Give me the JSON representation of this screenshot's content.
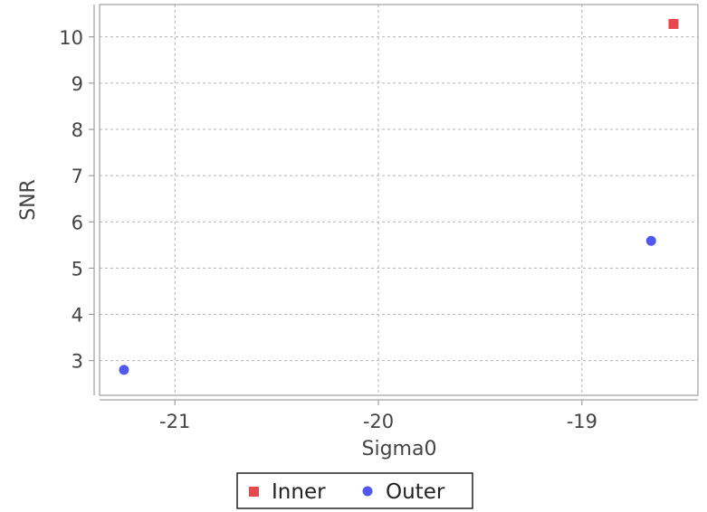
{
  "chart_data": {
    "type": "scatter",
    "xlabel": "Sigma0",
    "ylabel": "SNR",
    "xlim": [
      -21.37,
      -18.43
    ],
    "ylim": [
      2.25,
      10.7
    ],
    "xticks": [
      -21,
      -20,
      -19
    ],
    "yticks": [
      3,
      4,
      5,
      6,
      7,
      8,
      9,
      10
    ],
    "x_tick_labels": [
      "-21",
      "-20",
      "-19"
    ],
    "y_tick_labels": [
      "3",
      "4",
      "5",
      "6",
      "7",
      "8",
      "9",
      "10"
    ],
    "grid": true,
    "legend_position": "bottom-center",
    "series": [
      {
        "name": "Inner",
        "marker": "square",
        "color": "#e8474b",
        "points": [
          {
            "x": -18.55,
            "y": 10.28
          }
        ]
      },
      {
        "name": "Outer",
        "marker": "circle",
        "color": "#5158f0",
        "points": [
          {
            "x": -21.25,
            "y": 2.8
          },
          {
            "x": -18.66,
            "y": 5.59
          }
        ]
      }
    ]
  }
}
